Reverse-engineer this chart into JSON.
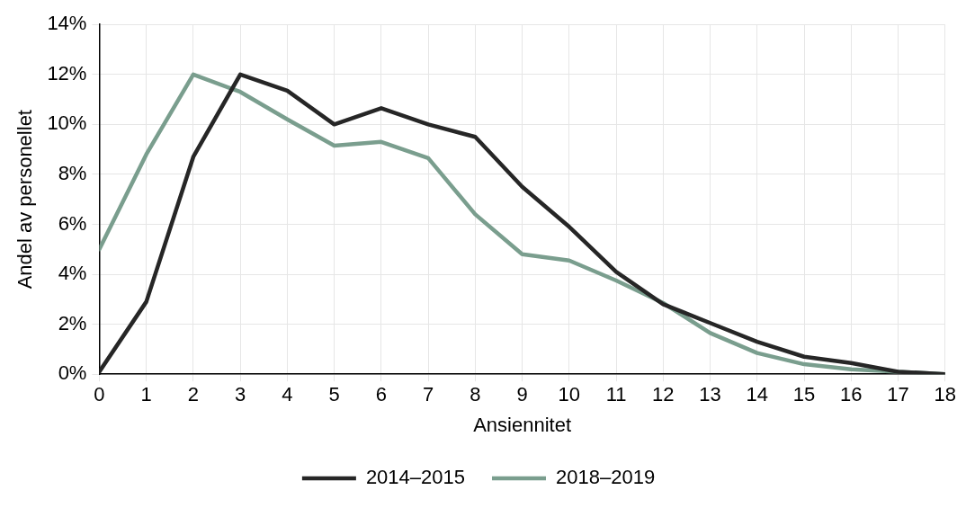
{
  "chart_data": {
    "type": "line",
    "xlabel": "Ansiennitet",
    "ylabel": "Andel av personellet",
    "x": [
      0,
      1,
      2,
      3,
      4,
      5,
      6,
      7,
      8,
      9,
      10,
      11,
      12,
      13,
      14,
      15,
      16,
      17,
      18
    ],
    "series": [
      {
        "name": "2014–2015",
        "color": "#262626",
        "values": [
          0.1,
          2.9,
          8.7,
          12.0,
          11.35,
          10.0,
          10.65,
          10.0,
          9.5,
          7.5,
          5.9,
          4.1,
          2.8,
          2.05,
          1.3,
          0.7,
          0.45,
          0.1,
          0.0
        ]
      },
      {
        "name": "2018–2019",
        "color": "#7a9e8e",
        "values": [
          5.0,
          8.8,
          12.0,
          11.3,
          10.2,
          9.15,
          9.3,
          8.65,
          6.4,
          4.8,
          4.55,
          3.75,
          2.85,
          1.65,
          0.85,
          0.4,
          0.2,
          0.1,
          0.0
        ]
      }
    ],
    "xlim": [
      0,
      18
    ],
    "xticks": [
      0,
      1,
      2,
      3,
      4,
      5,
      6,
      7,
      8,
      9,
      10,
      11,
      12,
      13,
      14,
      15,
      16,
      17,
      18
    ],
    "ylim": [
      0,
      14
    ],
    "yticks": [
      {
        "value": 0,
        "label": "0%"
      },
      {
        "value": 2,
        "label": "2%"
      },
      {
        "value": 4,
        "label": "4%"
      },
      {
        "value": 6,
        "label": "6%"
      },
      {
        "value": 8,
        "label": "8%"
      },
      {
        "value": 10,
        "label": "10%"
      },
      {
        "value": 12,
        "label": "12%"
      },
      {
        "value": 14,
        "label": "14%"
      }
    ],
    "grid": true,
    "legend": "bottom",
    "marker": "none",
    "line_style": "solid"
  }
}
